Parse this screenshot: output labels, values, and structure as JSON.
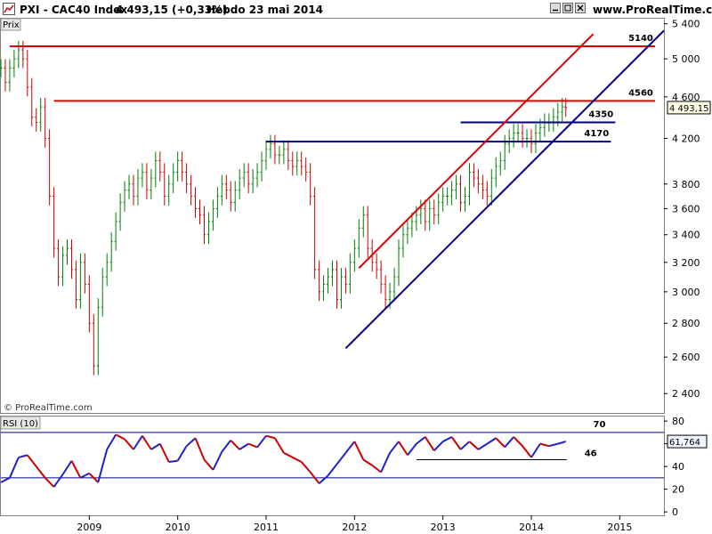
{
  "header": {
    "instrument": "PXI - CAC40 Index",
    "price_change": "4 493,15 (+0,33%)",
    "timeframe_date": "Hebdo  23 mai 2014",
    "site": "www.ProRealTime.com"
  },
  "icons": [
    "chart-icon",
    "minimize-icon",
    "maximize-icon",
    "close-icon"
  ],
  "colors": {
    "up_bar": "#008000",
    "down_bar": "#cc0000",
    "resistance": "#e00000",
    "support": "#000080",
    "rsi_line": "#cc0000",
    "rsi_line_up": "#2020cc"
  },
  "chart_data": [
    {
      "type": "ohlc",
      "panel_label": "Prix",
      "watermark": "© ProRealTime.com",
      "current_value_label": "4 493,15",
      "ylim": [
        2300,
        5450
      ],
      "y_ticks": [
        2400,
        2600,
        2800,
        3000,
        3200,
        3400,
        3600,
        3800,
        4200,
        4600,
        5000,
        5400
      ],
      "y_tick_labels": [
        "2 400",
        "2 600",
        "2 800",
        "3 000",
        "3 200",
        "3 400",
        "3 600",
        "3 800",
        "4 200",
        "4 600",
        "5 000",
        "5 400"
      ],
      "x_ticks": [
        2009,
        2010,
        2011,
        2012,
        2013,
        2014,
        2015
      ],
      "x_tick_labels": [
        "2009",
        "2010",
        "2011",
        "2012",
        "2013",
        "2014",
        "2015"
      ],
      "xlim": [
        2008.0,
        2015.5
      ],
      "series": [
        {
          "x": [
            2008.0,
            2008.05,
            2008.1,
            2008.15,
            2008.2,
            2008.25,
            2008.3,
            2008.35,
            2008.4,
            2008.45,
            2008.5,
            2008.55,
            2008.6,
            2008.65,
            2008.7,
            2008.75,
            2008.8,
            2008.85,
            2008.9,
            2008.95,
            2009.0,
            2009.05,
            2009.1,
            2009.15,
            2009.2,
            2009.25,
            2009.3,
            2009.35,
            2009.4,
            2009.45,
            2009.5,
            2009.55,
            2009.6,
            2009.65,
            2009.7,
            2009.75,
            2009.8,
            2009.85,
            2009.9,
            2009.95,
            2010.0,
            2010.05,
            2010.1,
            2010.15,
            2010.2,
            2010.25,
            2010.3,
            2010.35,
            2010.4,
            2010.45,
            2010.5,
            2010.55,
            2010.6,
            2010.65,
            2010.7,
            2010.75,
            2010.8,
            2010.85,
            2010.9,
            2010.95,
            2011.0,
            2011.05,
            2011.1,
            2011.15,
            2011.2,
            2011.25,
            2011.3,
            2011.35,
            2011.4,
            2011.45,
            2011.5,
            2011.55,
            2011.6,
            2011.65,
            2011.7,
            2011.75,
            2011.8,
            2011.85,
            2011.9,
            2011.95,
            2012.0,
            2012.05,
            2012.1,
            2012.15,
            2012.2,
            2012.25,
            2012.3,
            2012.35,
            2012.4,
            2012.45,
            2012.5,
            2012.55,
            2012.6,
            2012.65,
            2012.7,
            2012.75,
            2012.8,
            2012.85,
            2012.9,
            2012.95,
            2013.0,
            2013.05,
            2013.1,
            2013.15,
            2013.2,
            2013.25,
            2013.3,
            2013.35,
            2013.4,
            2013.45,
            2013.5,
            2013.55,
            2013.6,
            2013.65,
            2013.7,
            2013.75,
            2013.8,
            2013.85,
            2013.9,
            2013.95,
            2014.0,
            2014.05,
            2014.1,
            2014.15,
            2014.2,
            2014.25,
            2014.3,
            2014.35,
            2014.39
          ],
          "close": [
            4900,
            4750,
            4900,
            5000,
            5100,
            5000,
            4700,
            4400,
            4350,
            4500,
            4200,
            3700,
            3300,
            3100,
            3250,
            3300,
            3150,
            2950,
            3200,
            3050,
            2800,
            2550,
            2900,
            3100,
            3200,
            3350,
            3500,
            3650,
            3750,
            3800,
            3700,
            3850,
            3900,
            3750,
            3850,
            4000,
            3900,
            3700,
            3800,
            3900,
            4000,
            3900,
            3800,
            3700,
            3600,
            3550,
            3400,
            3500,
            3600,
            3700,
            3800,
            3750,
            3650,
            3750,
            3850,
            3900,
            3800,
            3850,
            3900,
            4000,
            4100,
            4150,
            4050,
            4050,
            4100,
            4000,
            3950,
            4000,
            3950,
            3900,
            3700,
            3150,
            3000,
            3050,
            3100,
            3150,
            2950,
            3100,
            3050,
            3200,
            3300,
            3450,
            3550,
            3300,
            3200,
            3150,
            3050,
            2950,
            3000,
            3100,
            3300,
            3400,
            3450,
            3500,
            3550,
            3600,
            3500,
            3600,
            3550,
            3650,
            3700,
            3700,
            3750,
            3800,
            3650,
            3700,
            3900,
            3850,
            3800,
            3750,
            3700,
            3850,
            3950,
            4000,
            4150,
            4200,
            4250,
            4250,
            4200,
            4200,
            4150,
            4250,
            4300,
            4350,
            4350,
            4400,
            4450,
            4500,
            4493
          ]
        }
      ],
      "levels": [
        {
          "label": "5140",
          "value": 5140,
          "color": "resistance",
          "from": 2008.1,
          "to": 2015.4
        },
        {
          "label": "4560",
          "value": 4560,
          "color": "resistance",
          "from": 2008.6,
          "to": 2015.4
        },
        {
          "label": "4350",
          "value": 4350,
          "color": "support",
          "from": 2013.2,
          "to": 2014.95
        },
        {
          "label": "4170",
          "value": 4170,
          "color": "support",
          "from": 2011.0,
          "to": 2014.9
        }
      ],
      "trendlines": [
        {
          "from": [
            2012.05,
            3160
          ],
          "to": [
            2014.7,
            5280
          ],
          "color": "resistance"
        },
        {
          "from": [
            2011.9,
            2650
          ],
          "to": [
            2015.5,
            5320
          ],
          "color": "support"
        }
      ]
    },
    {
      "type": "line",
      "panel_label": "RSI (10)",
      "current_value_label": "61,764",
      "ylim": [
        -3,
        84
      ],
      "y_ticks": [
        0,
        20,
        40,
        60,
        80
      ],
      "y_tick_labels": [
        "0",
        "20",
        "40",
        "60",
        "80"
      ],
      "levels": [
        {
          "label": "70",
          "value": 70
        },
        {
          "label": "30",
          "value": 30
        },
        {
          "label": "46",
          "value": 46,
          "from": 2012.7,
          "to": 2014.4
        }
      ],
      "x": [
        2008.0,
        2008.1,
        2008.2,
        2008.3,
        2008.4,
        2008.5,
        2008.6,
        2008.7,
        2008.8,
        2008.9,
        2009.0,
        2009.1,
        2009.2,
        2009.3,
        2009.4,
        2009.5,
        2009.6,
        2009.7,
        2009.8,
        2009.9,
        2010.0,
        2010.1,
        2010.2,
        2010.3,
        2010.4,
        2010.5,
        2010.6,
        2010.7,
        2010.8,
        2010.9,
        2011.0,
        2011.1,
        2011.2,
        2011.3,
        2011.4,
        2011.5,
        2011.6,
        2011.7,
        2011.8,
        2011.9,
        2012.0,
        2012.1,
        2012.2,
        2012.3,
        2012.4,
        2012.5,
        2012.6,
        2012.7,
        2012.8,
        2012.9,
        2013.0,
        2013.1,
        2013.2,
        2013.3,
        2013.4,
        2013.5,
        2013.6,
        2013.7,
        2013.8,
        2013.9,
        2014.0,
        2014.1,
        2014.2,
        2014.3,
        2014.39
      ],
      "values": [
        26,
        30,
        48,
        50,
        40,
        30,
        22,
        33,
        45,
        30,
        34,
        26,
        55,
        68,
        64,
        55,
        67,
        55,
        60,
        44,
        45,
        58,
        65,
        46,
        37,
        53,
        63,
        55,
        60,
        57,
        67,
        65,
        52,
        48,
        44,
        35,
        25,
        32,
        42,
        52,
        62,
        46,
        41,
        35,
        52,
        62,
        50,
        60,
        66,
        54,
        62,
        66,
        55,
        62,
        55,
        60,
        65,
        57,
        66,
        58,
        48,
        60,
        58,
        60,
        62
      ]
    }
  ]
}
